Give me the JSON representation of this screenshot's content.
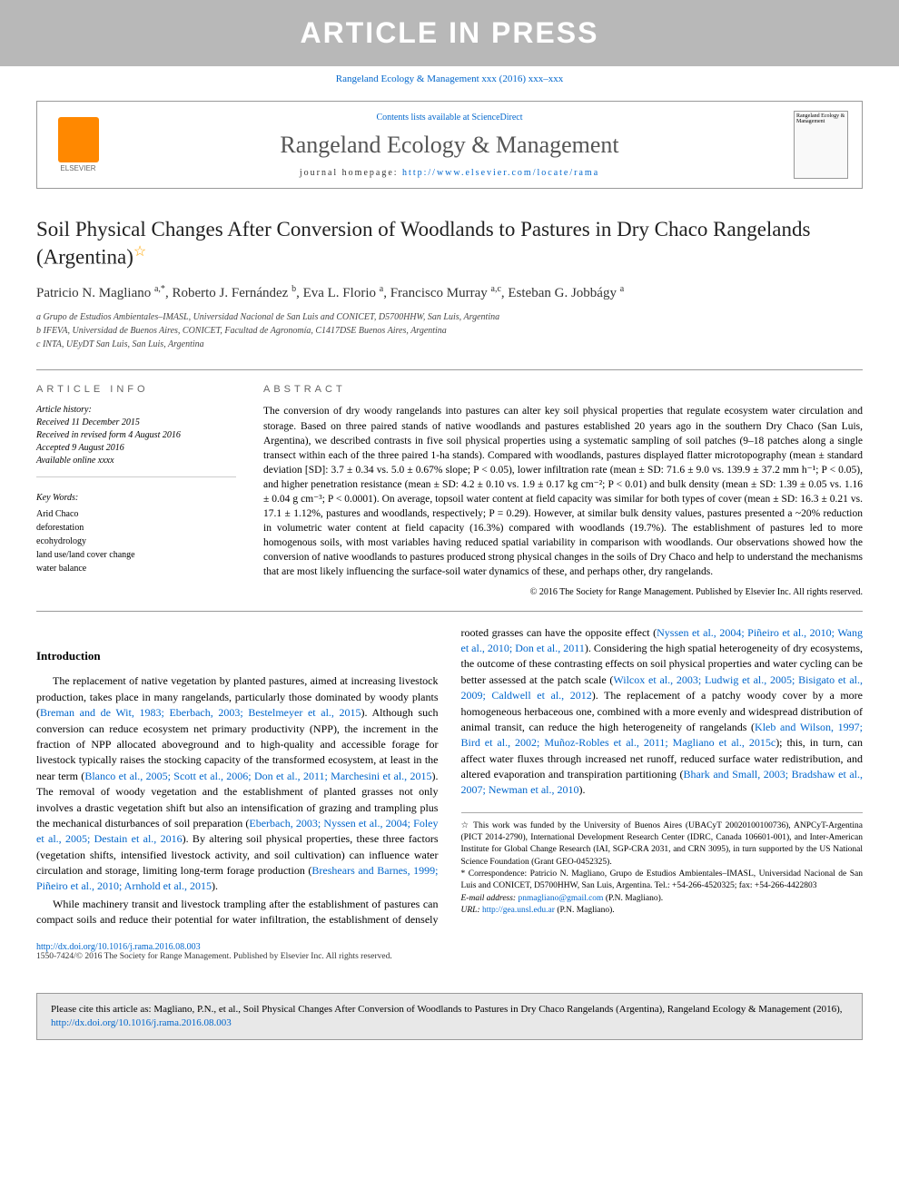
{
  "watermark": "ARTICLE IN PRESS",
  "topCitation": "Rangeland Ecology & Management xxx (2016) xxx–xxx",
  "journalBox": {
    "contentsLine": "Contents lists available at ScienceDirect",
    "journalName": "Rangeland Ecology & Management",
    "homepagePrefix": "journal homepage: ",
    "homepageUrl": "http://www.elsevier.com/locate/rama",
    "elsevierLabel": "ELSEVIER",
    "coverText": "Rangeland Ecology & Management"
  },
  "title": "Soil Physical Changes After Conversion of Woodlands to Pastures in Dry Chaco Rangelands (Argentina)",
  "authors": [
    {
      "name": "Patricio N. Magliano",
      "sup": "a,*"
    },
    {
      "name": "Roberto J. Fernández",
      "sup": "b"
    },
    {
      "name": "Eva L. Florio",
      "sup": "a"
    },
    {
      "name": "Francisco Murray",
      "sup": "a,c"
    },
    {
      "name": "Esteban G. Jobbágy",
      "sup": "a"
    }
  ],
  "affiliations": [
    "a Grupo de Estudios Ambientales–IMASL, Universidad Nacional de San Luis and CONICET, D5700HHW, San Luis, Argentina",
    "b IFEVA, Universidad de Buenos Aires, CONICET, Facultad de Agronomía, C1417DSE Buenos Aires, Argentina",
    "c INTA, UEyDT San Luis, San Luis, Argentina"
  ],
  "articleInfo": {
    "heading": "ARTICLE INFO",
    "historyLabel": "Article history:",
    "history": [
      "Received 11 December 2015",
      "Received in revised form 4 August 2016",
      "Accepted 9 August 2016",
      "Available online xxxx"
    ],
    "keywordsLabel": "Key Words:",
    "keywords": [
      "Arid Chaco",
      "deforestation",
      "ecohydrology",
      "land use/land cover change",
      "water balance"
    ]
  },
  "abstract": {
    "heading": "ABSTRACT",
    "text": "The conversion of dry woody rangelands into pastures can alter key soil physical properties that regulate ecosystem water circulation and storage. Based on three paired stands of native woodlands and pastures established 20 years ago in the southern Dry Chaco (San Luis, Argentina), we described contrasts in five soil physical properties using a systematic sampling of soil patches (9–18 patches along a single transect within each of the three paired 1-ha stands). Compared with woodlands, pastures displayed flatter microtopography (mean ± standard deviation [SD]: 3.7 ± 0.34 vs. 5.0 ± 0.67% slope; P < 0.05), lower infiltration rate (mean ± SD: 71.6 ± 9.0 vs. 139.9 ± 37.2 mm h⁻¹; P < 0.05), and higher penetration resistance (mean ± SD: 4.2 ± 0.10 vs. 1.9 ± 0.17 kg cm⁻²; P < 0.01) and bulk density (mean ± SD: 1.39 ± 0.05 vs. 1.16 ± 0.04 g cm⁻³; P < 0.0001). On average, topsoil water content at field capacity was similar for both types of cover (mean ± SD: 16.3 ± 0.21 vs. 17.1 ± 1.12%, pastures and woodlands, respectively; P = 0.29). However, at similar bulk density values, pastures presented a ~20% reduction in volumetric water content at field capacity (16.3%) compared with woodlands (19.7%). The establishment of pastures led to more homogenous soils, with most variables having reduced spatial variability in comparison with woodlands. Our observations showed how the conversion of native woodlands to pastures produced strong physical changes in the soils of Dry Chaco and help to understand the mechanisms that are most likely influencing the surface-soil water dynamics of these, and perhaps other, dry rangelands.",
    "copyright": "© 2016 The Society for Range Management. Published by Elsevier Inc. All rights reserved."
  },
  "intro": {
    "heading": "Introduction",
    "p1a": "The replacement of native vegetation by planted pastures, aimed at increasing livestock production, takes place in many rangelands, particularly those dominated by woody plants (",
    "p1ref1": "Breman and de Wit, 1983; Eberbach, 2003; Bestelmeyer et al., 2015",
    "p1b": "). Although such conversion can reduce ecosystem net primary productivity (NPP), the increment in the fraction of NPP allocated aboveground and to high-quality and accessible forage for livestock typically raises the stocking capacity of the transformed ecosystem, at least in the near term (",
    "p1ref2": "Blanco et al., 2005; Scott et al., 2006; Don et al., 2011; Marchesini et al., 2015",
    "p1c": "). The removal of woody vegetation and the establishment of planted grasses not only involves a drastic vegetation shift but also an intensification of grazing ",
    "p2a": "and trampling plus the mechanical disturbances of soil preparation (",
    "p2ref1": "Eberbach, 2003; Nyssen et al., 2004; Foley et al., 2005; Destain et al., 2016",
    "p2b": "). By altering soil physical properties, these three factors (vegetation shifts, intensified livestock activity, and soil cultivation) can influence water circulation and storage, limiting long-term forage production (",
    "p2ref2": "Breshears and Barnes, 1999; Piñeiro et al., 2010; Arnhold et al., 2015",
    "p2c": ").",
    "p3a": "While machinery transit and livestock trampling after the establishment of pastures can compact soils and reduce their potential for water infiltration, the establishment of densely rooted grasses can have the opposite effect (",
    "p3ref1": "Nyssen et al., 2004; Piñeiro et al., 2010; Wang et al., 2010; Don et al., 2011",
    "p3b": "). Considering the high spatial heterogeneity of dry ecosystems, the outcome of these contrasting effects on soil physical properties and water cycling can be better assessed at the patch scale (",
    "p3ref2": "Wilcox et al., 2003; Ludwig et al., 2005; Bisigato et al., 2009; Caldwell et al., 2012",
    "p3c": "). The replacement of a patchy woody cover by a more homogeneous herbaceous one, combined with a more evenly and widespread distribution of animal transit, can reduce the high heterogeneity of rangelands (",
    "p3ref3": "Kleb and Wilson, 1997; Bird et al., 2002; Muñoz-Robles et al., 2011; Magliano et al., 2015c",
    "p3d": "); this, in turn, can affect water fluxes through increased net runoff, reduced surface water redistribution, and altered evaporation and transpiration partitioning (",
    "p3ref4": "Bhark and Small, 2003; Bradshaw et al., 2007; Newman et al., 2010",
    "p3e": ")."
  },
  "footnotes": {
    "funding": "☆ This work was funded by the University of Buenos Aires (UBACyT 20020100100736), ANPCyT-Argentina (PICT 2014-2790), International Development Research Center (IDRC, Canada 106601-001), and Inter-American Institute for Global Change Research (IAI, SGP-CRA 2031, and CRN 3095), in turn supported by the US National Science Foundation (Grant GEO-0452325).",
    "correspondence": "* Correspondence: Patricio N. Magliano, Grupo de Estudios Ambientales–IMASL, Universidad Nacional de San Luis and CONICET, D5700HHW, San Luis, Argentina. Tel.: +54-266-4520325; fax: +54-266-4422803",
    "emailLabel": "E-mail address: ",
    "email": "pnmagliano@gmail.com",
    "emailSuffix": " (P.N. Magliano).",
    "urlLabel": "URL: ",
    "url": "http://gea.unsl.edu.ar",
    "urlSuffix": " (P.N. Magliano)."
  },
  "doi": {
    "url": "http://dx.doi.org/10.1016/j.rama.2016.08.003",
    "copyright": "1550-7424/© 2016 The Society for Range Management. Published by Elsevier Inc. All rights reserved."
  },
  "citeFooter": {
    "prefix": "Please cite this article as: Magliano, P.N., et al., Soil Physical Changes After Conversion of Woodlands to Pastures in Dry Chaco Rangelands (Argentina), Rangeland Ecology & Management (2016), ",
    "url": "http://dx.doi.org/10.1016/j.rama.2016.08.003"
  }
}
